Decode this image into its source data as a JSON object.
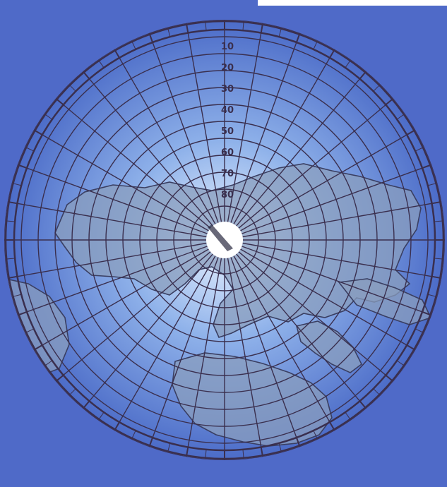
{
  "map": {
    "projection": "azimuthal-polar",
    "colors": {
      "background": "#4f6ac8",
      "disc_center": "#eaf3ff",
      "disc_mid": "#8fb2ea",
      "disc_edge": "#4c6cc8",
      "land": "#8a9dbd",
      "land_edge": "#3a3f62",
      "graticule": "#3a2f4e",
      "pole_cap": "#ffffff"
    },
    "graticule": {
      "meridian_count": 36,
      "parallel_count": 13
    },
    "latitude_labels": [
      "10",
      "20",
      "30",
      "40",
      "50",
      "60",
      "70",
      "80"
    ],
    "icons": [
      "polar-cap-icon",
      "compass-ring-icon"
    ]
  }
}
